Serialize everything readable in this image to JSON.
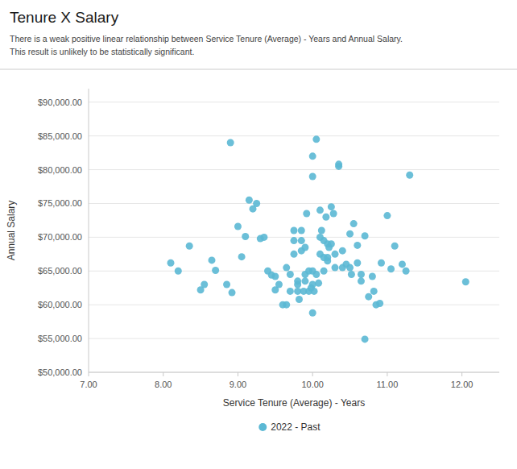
{
  "chart_data": {
    "type": "scatter",
    "title": "Tenure X Salary",
    "subtitle": [
      "There is a weak positive linear relationship between Service Tenure (Average) - Years and Annual Salary.",
      "This result is unlikely to be statistically significant."
    ],
    "xlabel": "Service Tenure (Average) - Years",
    "ylabel": "Annual Salary",
    "xlim": [
      7.0,
      12.5
    ],
    "ylim": [
      50000,
      92000
    ],
    "xticks": [
      {
        "value": 7.0,
        "label": "7.00"
      },
      {
        "value": 8.0,
        "label": "8.00"
      },
      {
        "value": 9.0,
        "label": "9.00"
      },
      {
        "value": 10.0,
        "label": "10.00"
      },
      {
        "value": 11.0,
        "label": "11.00"
      },
      {
        "value": 12.0,
        "label": "12.00"
      }
    ],
    "yticks": [
      {
        "value": 50000,
        "label": "$50,000.00"
      },
      {
        "value": 55000,
        "label": "$55,000.00"
      },
      {
        "value": 60000,
        "label": "$60,000.00"
      },
      {
        "value": 65000,
        "label": "$65,000.00"
      },
      {
        "value": 70000,
        "label": "$70,000.00"
      },
      {
        "value": 75000,
        "label": "$75,000.00"
      },
      {
        "value": 80000,
        "label": "$80,000.00"
      },
      {
        "value": 85000,
        "label": "$85,000.00"
      },
      {
        "value": 90000,
        "label": "$90,000.00"
      }
    ],
    "grid": true,
    "legend": "bottom",
    "x": [
      8.1,
      8.2,
      8.35,
      8.5,
      8.55,
      8.65,
      8.7,
      8.85,
      8.9,
      8.92,
      9.0,
      9.05,
      9.1,
      9.15,
      9.2,
      9.25,
      9.3,
      9.35,
      9.4,
      9.45,
      9.5,
      9.5,
      9.55,
      9.6,
      9.65,
      9.65,
      9.7,
      9.7,
      9.75,
      9.75,
      9.75,
      9.8,
      9.8,
      9.8,
      9.82,
      9.85,
      9.85,
      9.85,
      9.88,
      9.9,
      9.9,
      9.9,
      9.92,
      9.95,
      9.95,
      9.98,
      10.0,
      10.0,
      10.0,
      10.0,
      10.0,
      10.02,
      10.05,
      10.05,
      10.08,
      10.1,
      10.1,
      10.1,
      10.12,
      10.15,
      10.15,
      10.15,
      10.18,
      10.2,
      10.2,
      10.2,
      10.22,
      10.25,
      10.25,
      10.28,
      10.3,
      10.3,
      10.35,
      10.35,
      10.4,
      10.4,
      10.45,
      10.5,
      10.5,
      10.52,
      10.55,
      10.6,
      10.6,
      10.65,
      10.65,
      10.7,
      10.7,
      10.75,
      10.8,
      10.82,
      10.85,
      10.9,
      10.92,
      11.0,
      11.05,
      11.1,
      11.2,
      11.25,
      11.3,
      12.05
    ],
    "series": [
      {
        "name": "2022 - Past",
        "color": "#5BB8D4",
        "values": [
          66200,
          65000,
          68700,
          62200,
          63000,
          66600,
          65100,
          63000,
          84000,
          61800,
          71600,
          67100,
          70100,
          75500,
          74200,
          75000,
          69800,
          70000,
          65000,
          64400,
          64200,
          62200,
          63000,
          60000,
          60000,
          65500,
          62000,
          64500,
          67500,
          69500,
          71000,
          62000,
          63000,
          63500,
          60800,
          71000,
          69500,
          68000,
          62000,
          63500,
          64500,
          68500,
          73500,
          65000,
          62000,
          62500,
          79000,
          82000,
          65000,
          63000,
          58800,
          62000,
          84500,
          64500,
          63200,
          74000,
          70000,
          67500,
          71000,
          69500,
          65000,
          67000,
          73000,
          66500,
          69000,
          67000,
          68500,
          74500,
          69000,
          73500,
          67500,
          65500,
          80500,
          80800,
          65500,
          68000,
          66000,
          65500,
          70500,
          64500,
          72000,
          68800,
          66200,
          63500,
          64500,
          54900,
          70200,
          61200,
          64200,
          62000,
          60000,
          60200,
          66200,
          73200,
          65300,
          68700,
          66000,
          65000,
          79200,
          63400
        ]
      }
    ]
  }
}
